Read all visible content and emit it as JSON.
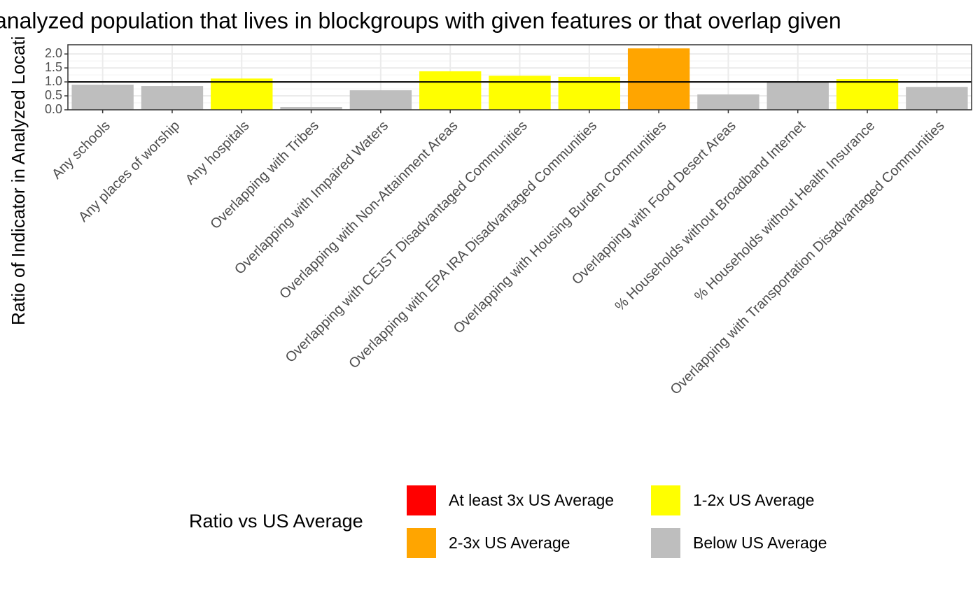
{
  "chart_data": {
    "type": "bar",
    "title": "analyzed population that lives in blockgroups with given features or that overlap given",
    "y_label": "Ratio of Indicator in Analyzed Locati",
    "categories": [
      "Any schools",
      "Any places of worship",
      "Any hospitals",
      "Overlapping with Tribes",
      "Overlapping with Impaired Waters",
      "Overlapping with Non-Attainment Areas",
      "Overlapping with CEJST Disadvantaged Communities",
      "Overlapping with EPA IRA Disadvantaged Communities",
      "Overlapping with Housing Burden Communities",
      "Overlapping with Food Desert Areas",
      "% Households without Broadband Internet",
      "% Households without Health Insurance",
      "Overlapping with Transportation Disadvantaged Communities"
    ],
    "values": [
      0.9,
      0.85,
      1.12,
      0.1,
      0.7,
      1.38,
      1.22,
      1.18,
      2.2,
      0.55,
      0.98,
      1.1,
      0.82
    ],
    "colors": [
      "#bebebe",
      "#bebebe",
      "#ffff00",
      "#bebebe",
      "#bebebe",
      "#ffff00",
      "#ffff00",
      "#ffff00",
      "#ffa500",
      "#bebebe",
      "#bebebe",
      "#ffff00",
      "#bebebe"
    ],
    "ylim": [
      0,
      2.33
    ],
    "yticks": [
      {
        "value": 0,
        "label": "0.0"
      },
      0.5,
      {
        "value": 1,
        "label": "1.0"
      },
      1.5,
      {
        "value": 2,
        "label": "2.0"
      }
    ],
    "reference_line": 1,
    "grid": true,
    "legend": {
      "title": "Ratio vs US Average",
      "items": [
        {
          "name": "At least 3x US Average",
          "color": "#ff0000"
        },
        {
          "name": "2-3x US Average",
          "color": "#ffa500"
        },
        {
          "name": "1-2x US Average",
          "color": "#ffff00"
        },
        {
          "name": "Below US Average",
          "color": "#bebebe"
        }
      ]
    }
  }
}
